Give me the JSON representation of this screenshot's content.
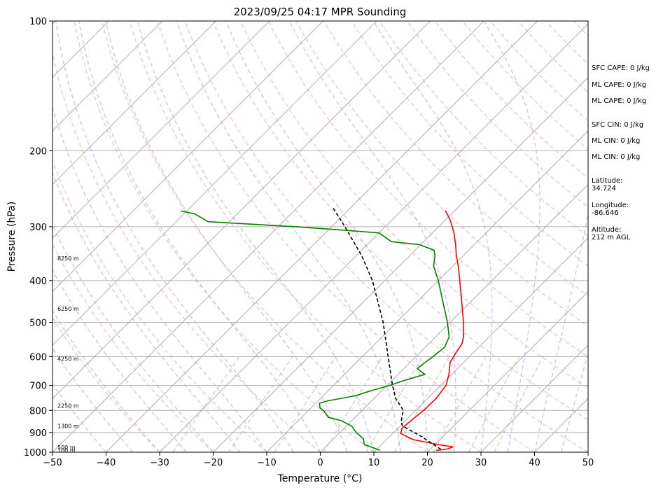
{
  "chart_data": {
    "type": "line",
    "title": "2023/09/25 04:17 MPR Sounding",
    "xlabel": "Temperature (°C)",
    "ylabel": "Pressure (hPa)",
    "xlim": [
      -50,
      50
    ],
    "ylim": [
      1000,
      100
    ],
    "y_scale": "log",
    "skew": true,
    "grid": true,
    "x_ticks": [
      "−50",
      "−40",
      "−30",
      "−20",
      "−10",
      "0",
      "10",
      "20",
      "30",
      "40",
      "50"
    ],
    "x_tick_values": [
      -50,
      -40,
      -30,
      -20,
      -10,
      0,
      10,
      20,
      30,
      40,
      50
    ],
    "y_ticks": [
      "1000",
      "900",
      "800",
      "700",
      "600",
      "500",
      "400",
      "300",
      "200",
      "100"
    ],
    "y_tick_values": [
      1000,
      900,
      800,
      700,
      600,
      500,
      400,
      300,
      200,
      100
    ],
    "series": [
      {
        "color": "#ff0000",
        "points": [
          {
            "p": 990,
            "t": 21.3
          },
          {
            "p": 984,
            "t": 23.0
          },
          {
            "p": 972,
            "t": 23.8
          },
          {
            "p": 962,
            "t": 21.0
          },
          {
            "p": 935,
            "t": 15.0
          },
          {
            "p": 905,
            "t": 11.5
          },
          {
            "p": 880,
            "t": 10.8
          },
          {
            "p": 850,
            "t": 11.0
          },
          {
            "p": 800,
            "t": 11.5
          },
          {
            "p": 750,
            "t": 11.6
          },
          {
            "p": 700,
            "t": 11.0
          },
          {
            "p": 660,
            "t": 9.5
          },
          {
            "p": 620,
            "t": 7.5
          },
          {
            "p": 590,
            "t": 6.8
          },
          {
            "p": 560,
            "t": 6.2
          },
          {
            "p": 540,
            "t": 5.2
          },
          {
            "p": 500,
            "t": 2.5
          },
          {
            "p": 450,
            "t": -1.5
          },
          {
            "p": 400,
            "t": -6.0
          },
          {
            "p": 370,
            "t": -9.0
          },
          {
            "p": 350,
            "t": -11.3
          },
          {
            "p": 330,
            "t": -13.5
          },
          {
            "p": 310,
            "t": -16.0
          },
          {
            "p": 290,
            "t": -19.0
          },
          {
            "p": 275,
            "t": -21.8
          }
        ]
      },
      {
        "color": "#008000",
        "points": [
          {
            "p": 990,
            "t": 10.8
          },
          {
            "p": 980,
            "t": 9.5
          },
          {
            "p": 970,
            "t": 8.2
          },
          {
            "p": 960,
            "t": 6.8
          },
          {
            "p": 930,
            "t": 5.5
          },
          {
            "p": 900,
            "t": 3.0
          },
          {
            "p": 870,
            "t": 1.0
          },
          {
            "p": 845,
            "t": -2.0
          },
          {
            "p": 830,
            "t": -5.0
          },
          {
            "p": 800,
            "t": -7.2
          },
          {
            "p": 790,
            "t": -8.3
          },
          {
            "p": 770,
            "t": -9.3
          },
          {
            "p": 760,
            "t": -8.2
          },
          {
            "p": 740,
            "t": -4.0
          },
          {
            "p": 720,
            "t": -2.0
          },
          {
            "p": 700,
            "t": 0.5
          },
          {
            "p": 680,
            "t": 2.5
          },
          {
            "p": 660,
            "t": 5.0
          },
          {
            "p": 640,
            "t": 2.5
          },
          {
            "p": 620,
            "t": 2.8
          },
          {
            "p": 600,
            "t": 3.2
          },
          {
            "p": 570,
            "t": 3.6
          },
          {
            "p": 540,
            "t": 2.5
          },
          {
            "p": 500,
            "t": -0.5
          },
          {
            "p": 450,
            "t": -5.0
          },
          {
            "p": 400,
            "t": -10.0
          },
          {
            "p": 370,
            "t": -13.6
          },
          {
            "p": 350,
            "t": -15.3
          },
          {
            "p": 340,
            "t": -16.5
          },
          {
            "p": 330,
            "t": -20.3
          },
          {
            "p": 325,
            "t": -26.0
          },
          {
            "p": 310,
            "t": -30.0
          },
          {
            "p": 305,
            "t": -38.0
          },
          {
            "p": 300,
            "t": -46.7
          },
          {
            "p": 292,
            "t": -64.0
          },
          {
            "p": 280,
            "t": -68.0
          },
          {
            "p": 276,
            "t": -71.0
          }
        ]
      },
      {
        "color": "#000000",
        "dashed": true,
        "points": [
          {
            "p": 985,
            "t": 22.0
          },
          {
            "p": 920,
            "t": 16.0
          },
          {
            "p": 870,
            "t": 10.5
          },
          {
            "p": 850,
            "t": 9.4
          },
          {
            "p": 800,
            "t": 7.7
          },
          {
            "p": 750,
            "t": 4.0
          },
          {
            "p": 700,
            "t": 1.0
          },
          {
            "p": 600,
            "t": -5.2
          },
          {
            "p": 500,
            "t": -12.5
          },
          {
            "p": 400,
            "t": -22.3
          },
          {
            "p": 350,
            "t": -29.0
          },
          {
            "p": 300,
            "t": -37.5
          },
          {
            "p": 270,
            "t": -43.5
          }
        ]
      }
    ],
    "height_labels": [
      {
        "p": 990,
        "text": "100 m"
      },
      {
        "p": 975,
        "text": "500 m"
      },
      {
        "p": 869,
        "text": "1300 m"
      },
      {
        "p": 780,
        "text": "2250 m"
      },
      {
        "p": 607,
        "text": "4250 m"
      },
      {
        "p": 465,
        "text": "6250 m"
      },
      {
        "p": 355,
        "text": "8250 m"
      }
    ]
  },
  "stats": {
    "sfc_cape": "SFC CAPE: 0 J/kg",
    "ml_cape_1": "ML CAPE: 0 J/kg",
    "ml_cape_2": "ML CAPE: 0 J/kg",
    "sfc_cin": "SFC CIN: 0 J/kg",
    "ml_cin_1": "ML CIN: 0 J/kg",
    "ml_cin_2": "ML CIN: 0 J/kg",
    "latitude": "Latitude:\n34.724",
    "longitude": "Longitude:\n-86.646",
    "altitude": "Altitude:\n212 m AGL"
  }
}
